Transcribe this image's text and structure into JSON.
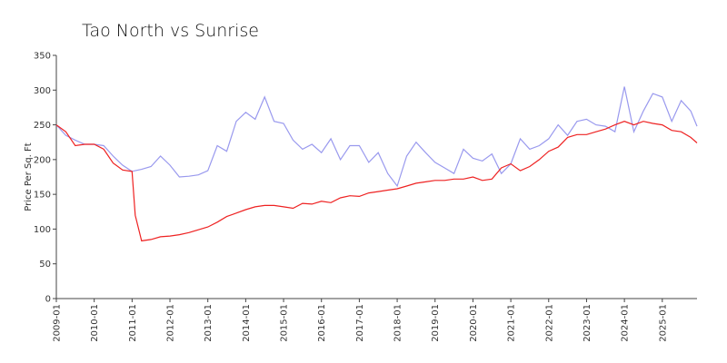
{
  "chart_data": {
    "type": "line",
    "title": "Tao North vs Sunrise",
    "y_label": "Price Per Sq. Ft",
    "x": [
      "2009-01",
      "2009-04",
      "2009-07",
      "2009-10",
      "2010-01",
      "2010-04",
      "2010-07",
      "2010-10",
      "2011-01",
      "2011-02",
      "2011-04",
      "2011-07",
      "2011-10",
      "2012-01",
      "2012-04",
      "2012-07",
      "2012-10",
      "2013-01",
      "2013-04",
      "2013-07",
      "2013-10",
      "2014-01",
      "2014-04",
      "2014-07",
      "2014-10",
      "2015-01",
      "2015-04",
      "2015-07",
      "2015-10",
      "2016-01",
      "2016-04",
      "2016-07",
      "2016-10",
      "2017-01",
      "2017-04",
      "2017-07",
      "2017-10",
      "2018-01",
      "2018-04",
      "2018-07",
      "2018-10",
      "2019-01",
      "2019-04",
      "2019-07",
      "2019-10",
      "2020-01",
      "2020-04",
      "2020-07",
      "2020-10",
      "2021-01",
      "2021-04",
      "2021-07",
      "2021-10",
      "2022-01",
      "2022-04",
      "2022-07",
      "2022-10",
      "2023-01",
      "2023-04",
      "2023-07",
      "2023-10",
      "2024-01",
      "2024-04",
      "2024-07",
      "2024-10",
      "2025-01",
      "2025-04",
      "2025-07",
      "2025-10",
      "2025-12"
    ],
    "series": [
      {
        "color": "#9999ee",
        "values": [
          250,
          235,
          228,
          222,
          222,
          220,
          205,
          192,
          183,
          184,
          186,
          190,
          205,
          192,
          175,
          176,
          178,
          184,
          220,
          212,
          255,
          268,
          258,
          290,
          255,
          252,
          228,
          215,
          222,
          210,
          230,
          200,
          220,
          220,
          196,
          210,
          180,
          162,
          205,
          225,
          210,
          196,
          188,
          180,
          215,
          202,
          198,
          208,
          180,
          194,
          230,
          215,
          220,
          230,
          250,
          235,
          255,
          258,
          250,
          248,
          240,
          305,
          240,
          270,
          295,
          290,
          255,
          285,
          270,
          248
        ]
      },
      {
        "color": "#ee2222",
        "values": [
          250,
          240,
          220,
          222,
          222,
          215,
          195,
          185,
          183,
          120,
          83,
          85,
          89,
          90,
          92,
          95,
          99,
          103,
          110,
          118,
          123,
          128,
          132,
          134,
          134,
          132,
          130,
          137,
          136,
          140,
          138,
          145,
          148,
          147,
          152,
          154,
          156,
          158,
          162,
          166,
          168,
          170,
          170,
          172,
          172,
          175,
          170,
          172,
          188,
          194,
          184,
          190,
          200,
          212,
          218,
          232,
          236,
          236,
          240,
          244,
          250,
          255,
          250,
          255,
          252,
          250,
          242,
          240,
          232,
          224
        ]
      }
    ],
    "xlim": [
      "2009-01",
      "2025-12"
    ],
    "xticks": [
      "2009-01",
      "2010-01",
      "2011-01",
      "2012-01",
      "2013-01",
      "2014-01",
      "2015-01",
      "2016-01",
      "2017-01",
      "2018-01",
      "2019-01",
      "2020-01",
      "2021-01",
      "2022-01",
      "2023-01",
      "2024-01",
      "2025-01"
    ],
    "ylim": [
      0,
      350
    ],
    "yticks": [
      0,
      50,
      100,
      150,
      200,
      250,
      300,
      350
    ],
    "grid": false
  }
}
